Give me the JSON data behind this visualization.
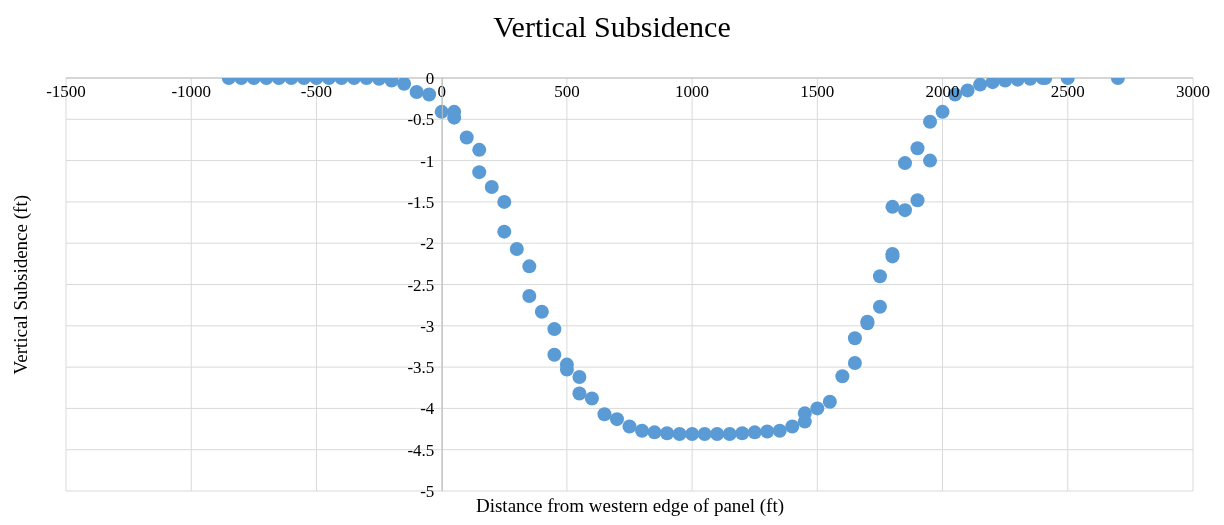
{
  "chart_data": {
    "type": "scatter",
    "title": "Vertical Subsidence",
    "xlabel": "Distance from western edge of panel (ft)",
    "ylabel": "Vertical Subsidence (ft)",
    "x": [
      -850,
      -800,
      -750,
      -700,
      -650,
      -600,
      -550,
      -500,
      -450,
      -400,
      -350,
      -300,
      -250,
      -200,
      -150,
      -100,
      -50,
      0,
      50,
      50,
      100,
      150,
      150,
      200,
      250,
      250,
      300,
      350,
      350,
      400,
      450,
      450,
      500,
      500,
      550,
      550,
      600,
      650,
      700,
      750,
      800,
      850,
      900,
      950,
      1000,
      1050,
      1100,
      1150,
      1200,
      1250,
      1300,
      1350,
      1400,
      1450,
      1450,
      1500,
      1550,
      1600,
      1650,
      1650,
      1700,
      1700,
      1750,
      1750,
      1800,
      1800,
      1800,
      1850,
      1850,
      1900,
      1900,
      1950,
      1950,
      2000,
      2050,
      2100,
      2150,
      2200,
      2250,
      2300,
      2350,
      2400,
      2410,
      2500,
      2700
    ],
    "values": [
      0,
      0,
      0,
      0,
      0,
      0,
      0,
      0,
      0,
      0,
      0,
      0,
      -0.01,
      -0.03,
      -0.07,
      -0.17,
      -0.2,
      -0.41,
      -0.41,
      -0.48,
      -0.72,
      -0.87,
      -1.14,
      -1.32,
      -1.5,
      -1.86,
      -2.07,
      -2.28,
      -2.64,
      -2.83,
      -3.04,
      -3.35,
      -3.47,
      -3.53,
      -3.62,
      -3.82,
      -3.88,
      -4.07,
      -4.13,
      -4.22,
      -4.27,
      -4.29,
      -4.3,
      -4.31,
      -4.31,
      -4.31,
      -4.31,
      -4.31,
      -4.3,
      -4.29,
      -4.28,
      -4.27,
      -4.22,
      -4.06,
      -4.16,
      -4.0,
      -3.92,
      -3.61,
      -3.45,
      -3.15,
      -2.97,
      -2.95,
      -2.77,
      -2.4,
      -2.16,
      -2.13,
      -1.56,
      -1.6,
      -1.03,
      -1.48,
      -0.85,
      -1.0,
      -0.53,
      -0.41,
      -0.2,
      -0.15,
      -0.08,
      -0.05,
      -0.03,
      -0.02,
      -0.01,
      0,
      0,
      0,
      0
    ],
    "color": "#5b9bd5",
    "marker": "circle",
    "grid": true,
    "xlim": [
      -1500,
      3000
    ],
    "xticks": [
      -1500,
      -1000,
      -500,
      0,
      500,
      1000,
      1500,
      2000,
      2500,
      3000
    ],
    "ylim": [
      -5,
      0
    ],
    "yticks": [
      -5,
      -4.5,
      -4,
      -3.5,
      -3,
      -2.5,
      -2,
      -1.5,
      -1,
      -0.5,
      0
    ]
  }
}
